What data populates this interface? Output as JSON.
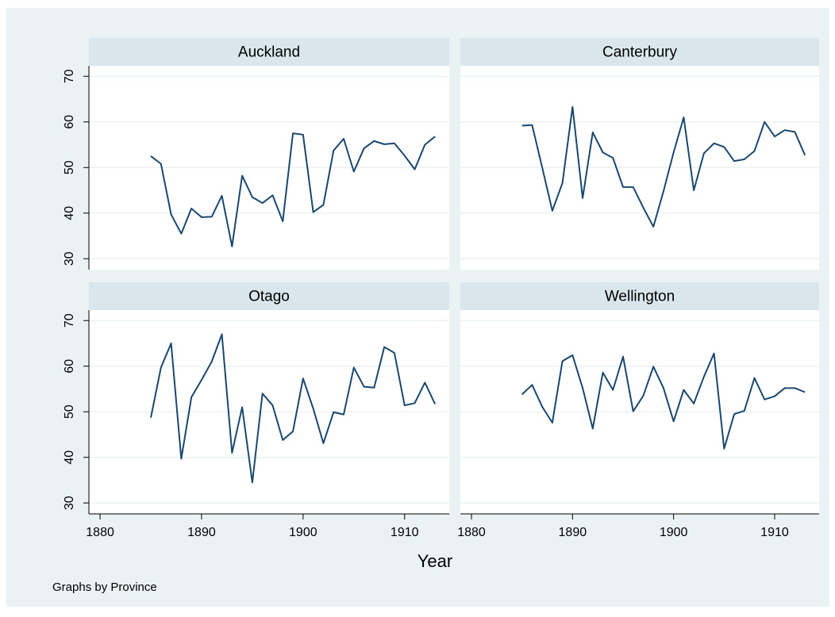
{
  "chart_data": [
    {
      "type": "line",
      "title": "Auckland",
      "color": "#1a476f",
      "x": [
        1885,
        1886,
        1887,
        1888,
        1889,
        1890,
        1891,
        1892,
        1893,
        1894,
        1895,
        1896,
        1897,
        1898,
        1899,
        1900,
        1901,
        1902,
        1903,
        1904,
        1905,
        1906,
        1907,
        1908,
        1909,
        1910,
        1911,
        1912,
        1913
      ],
      "values": [
        52.5,
        50.8,
        39.7,
        35.5,
        41,
        39.1,
        39.2,
        43.8,
        32.7,
        48.2,
        43.5,
        42.2,
        43.9,
        38.2,
        57.5,
        57.2,
        40.2,
        41.8,
        53.7,
        56.3,
        49.1,
        54.2,
        55.8,
        55.1,
        55.3,
        52.6,
        49.6,
        55,
        56.8
      ],
      "xlim": [
        1878.9,
        1914.4
      ],
      "ylim": [
        27.6,
        72.3
      ],
      "yticks": [
        30,
        40,
        50,
        60,
        70
      ]
    },
    {
      "type": "line",
      "title": "Canterbury",
      "color": "#1a476f",
      "x": [
        1885,
        1886,
        1887,
        1888,
        1889,
        1890,
        1891,
        1892,
        1893,
        1894,
        1895,
        1896,
        1897,
        1898,
        1899,
        1900,
        1901,
        1902,
        1903,
        1904,
        1905,
        1906,
        1907,
        1908,
        1909,
        1910,
        1911,
        1912,
        1913
      ],
      "values": [
        59.2,
        59.3,
        50,
        40.5,
        46.6,
        63.3,
        43.3,
        57.7,
        53.3,
        52.1,
        45.7,
        45.7,
        41.2,
        37,
        44.8,
        53.3,
        61,
        45,
        53.1,
        55.3,
        54.5,
        51.4,
        51.8,
        53.6,
        60,
        56.8,
        58.2,
        57.8,
        52.7
      ],
      "xlim": [
        1878.9,
        1914.4
      ],
      "ylim": [
        27.6,
        72.3
      ],
      "yticks": [
        30,
        40,
        50,
        60,
        70
      ]
    },
    {
      "type": "line",
      "title": "Otago",
      "color": "#1a476f",
      "x": [
        1885,
        1886,
        1887,
        1888,
        1889,
        1890,
        1891,
        1892,
        1893,
        1894,
        1895,
        1896,
        1897,
        1898,
        1899,
        1900,
        1901,
        1902,
        1903,
        1904,
        1905,
        1906,
        1907,
        1908,
        1909,
        1910,
        1911,
        1912,
        1913
      ],
      "values": [
        48.7,
        59.7,
        65,
        39.7,
        53.2,
        57,
        61,
        67,
        41,
        51,
        34.5,
        54,
        51.4,
        43.8,
        45.7,
        57.3,
        50.7,
        43.1,
        49.9,
        49.4,
        59.7,
        55.5,
        55.3,
        64.2,
        62.9,
        51.4,
        51.9,
        56.4,
        51.7
      ],
      "xlim": [
        1878.9,
        1914.4
      ],
      "ylim": [
        27.6,
        72.3
      ],
      "yticks": [
        30,
        40,
        50,
        60,
        70
      ],
      "xticks": [
        1880,
        1890,
        1900,
        1910
      ]
    },
    {
      "type": "line",
      "title": "Wellington",
      "color": "#1a476f",
      "x": [
        1885,
        1886,
        1887,
        1888,
        1889,
        1890,
        1891,
        1892,
        1893,
        1894,
        1895,
        1896,
        1897,
        1898,
        1899,
        1900,
        1901,
        1902,
        1903,
        1904,
        1905,
        1906,
        1907,
        1908,
        1909,
        1910,
        1911,
        1912,
        1913
      ],
      "values": [
        53.8,
        55.9,
        51.1,
        47.6,
        61.1,
        62.4,
        55.2,
        46.3,
        58.6,
        54.8,
        62.1,
        50.1,
        53.5,
        59.9,
        55.2,
        47.9,
        54.8,
        51.8,
        57.7,
        62.8,
        41.9,
        49.5,
        50.2,
        57.4,
        52.7,
        53.4,
        55.2,
        55.2,
        54.3
      ],
      "xlim": [
        1878.9,
        1914.4
      ],
      "ylim": [
        27.6,
        72.3
      ],
      "yticks": [
        30,
        40,
        50,
        60,
        70
      ],
      "xticks": [
        1880,
        1890,
        1900,
        1910
      ]
    }
  ],
  "x_label": "Year",
  "note": "Graphs by Province"
}
